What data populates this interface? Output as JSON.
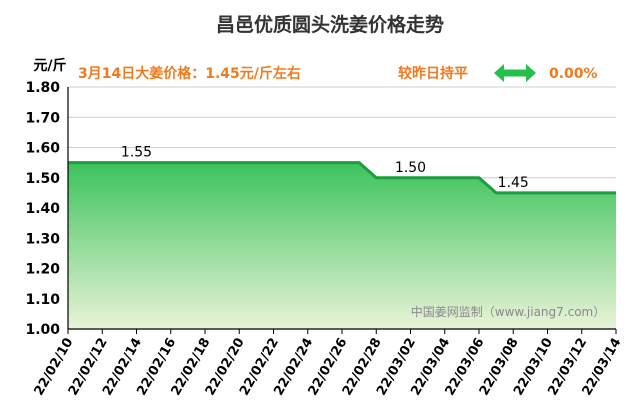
{
  "title": "昌邑优质圆头洗姜价格走势",
  "y_unit": "元/斤",
  "price_note": "3月14日大姜价格：1.45元/斤左右",
  "trend_label": "较昨日持平",
  "change_pct": "0.00%",
  "watermark": "中国姜网监制（www.jiang7.com）",
  "colors": {
    "title": "#333333",
    "accent": "#f07a20",
    "line": "#1a9e3e",
    "area_top": "#3cc35c",
    "area_bottom": "#eaf3d8",
    "arrow": "#25c04a",
    "axis": "#000000",
    "grid": "#cccccc",
    "watermark": "#8a8a8a"
  },
  "chart_data": {
    "type": "area",
    "x": [
      "22/02/10",
      "22/02/11",
      "22/02/12",
      "22/02/13",
      "22/02/14",
      "22/02/15",
      "22/02/16",
      "22/02/17",
      "22/02/18",
      "22/02/19",
      "22/02/20",
      "22/02/21",
      "22/02/22",
      "22/02/23",
      "22/02/24",
      "22/02/25",
      "22/02/26",
      "22/02/27",
      "22/02/28",
      "22/03/01",
      "22/03/02",
      "22/03/03",
      "22/03/04",
      "22/03/05",
      "22/03/06",
      "22/03/07",
      "22/03/08",
      "22/03/09",
      "22/03/10",
      "22/03/11",
      "22/03/12",
      "22/03/13",
      "22/03/14"
    ],
    "values": [
      1.55,
      1.55,
      1.55,
      1.55,
      1.55,
      1.55,
      1.55,
      1.55,
      1.55,
      1.55,
      1.55,
      1.55,
      1.55,
      1.55,
      1.55,
      1.55,
      1.55,
      1.55,
      1.5,
      1.5,
      1.5,
      1.5,
      1.5,
      1.5,
      1.5,
      1.45,
      1.45,
      1.45,
      1.45,
      1.45,
      1.45,
      1.45,
      1.45
    ],
    "tick_labels": [
      "22/02/10",
      "22/02/12",
      "22/02/14",
      "22/02/16",
      "22/02/18",
      "22/02/20",
      "22/02/22",
      "22/02/24",
      "22/02/26",
      "22/02/28",
      "22/03/02",
      "22/03/04",
      "22/03/06",
      "22/03/08",
      "22/03/10",
      "22/03/12",
      "22/03/14"
    ],
    "yticks": [
      "1.80",
      "1.70",
      "1.60",
      "1.50",
      "1.40",
      "1.30",
      "1.20",
      "1.10",
      "1.00"
    ],
    "ylim": [
      1.0,
      1.8
    ],
    "data_labels": [
      {
        "x": "22/02/14",
        "value": 1.55,
        "text": "1.55"
      },
      {
        "x": "22/03/02",
        "value": 1.5,
        "text": "1.50"
      },
      {
        "x": "22/03/08",
        "value": 1.45,
        "text": "1.45"
      }
    ],
    "grid": true
  }
}
